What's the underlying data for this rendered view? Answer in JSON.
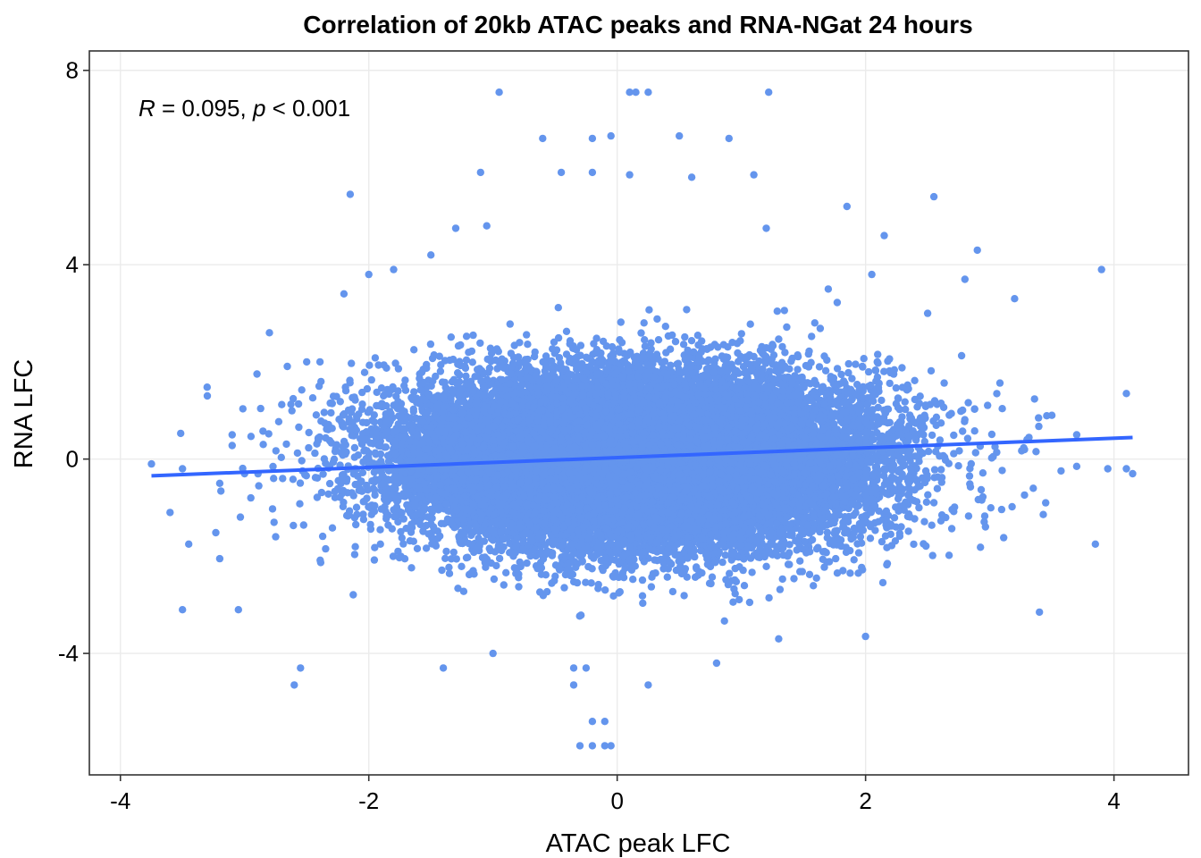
{
  "chart_data": {
    "type": "scatter",
    "title": "Correlation of 20kb ATAC peaks and RNA-NGat 24 hours",
    "xlabel": "ATAC peak LFC",
    "ylabel": "RNA LFC",
    "xlim": [
      -4.25,
      4.6
    ],
    "ylim": [
      -6.5,
      8.4
    ],
    "x_ticks": [
      -4,
      -2,
      0,
      2,
      4
    ],
    "x_tick_labels": [
      "-4",
      "-2",
      "0",
      "2",
      "4"
    ],
    "y_ticks": [
      -4,
      0,
      4,
      8
    ],
    "y_tick_labels": [
      "-4",
      "0",
      "4",
      "8"
    ],
    "grid": true,
    "point_color": "#6495ED",
    "line_color": "#3366FF",
    "annotation": {
      "r_symbol": "R",
      "r_text": " = 0.095, ",
      "p_symbol": "p",
      "p_text": " < 0.001"
    },
    "regression": {
      "slope": 0.1,
      "intercept": 0.03,
      "x_range": [
        -3.75,
        4.15
      ]
    },
    "dense_cloud": {
      "n": 26000,
      "center": [
        0.15,
        0.0
      ],
      "sd_x": 0.9,
      "sd_y": 0.85,
      "seed": 7
    },
    "outlier_points": [
      [
        -0.95,
        7.55
      ],
      [
        0.1,
        7.55
      ],
      [
        0.15,
        7.55
      ],
      [
        0.25,
        7.55
      ],
      [
        1.22,
        7.55
      ],
      [
        -0.6,
        6.6
      ],
      [
        -0.2,
        6.6
      ],
      [
        -0.05,
        6.65
      ],
      [
        0.5,
        6.65
      ],
      [
        0.9,
        6.6
      ],
      [
        -1.1,
        5.9
      ],
      [
        -0.45,
        5.9
      ],
      [
        -0.2,
        5.9
      ],
      [
        0.1,
        5.85
      ],
      [
        0.6,
        5.8
      ],
      [
        1.1,
        5.85
      ],
      [
        -2.15,
        5.45
      ],
      [
        2.55,
        5.4
      ],
      [
        -1.3,
        4.75
      ],
      [
        -1.05,
        4.8
      ],
      [
        1.2,
        4.75
      ],
      [
        1.85,
        5.2
      ],
      [
        2.15,
        4.6
      ],
      [
        3.9,
        3.9
      ],
      [
        2.9,
        4.3
      ],
      [
        2.8,
        3.7
      ],
      [
        -2.0,
        3.8
      ],
      [
        -2.2,
        3.4
      ],
      [
        -2.8,
        2.6
      ],
      [
        3.2,
        3.3
      ],
      [
        -3.3,
        1.3
      ],
      [
        -2.9,
        1.75
      ],
      [
        -3.75,
        -0.1
      ],
      [
        -3.5,
        -0.2
      ],
      [
        -3.2,
        -0.5
      ],
      [
        -3.6,
        -1.1
      ],
      [
        -3.45,
        -1.75
      ],
      [
        -3.5,
        -3.1
      ],
      [
        -3.05,
        -3.1
      ],
      [
        -2.55,
        -4.3
      ],
      [
        -2.6,
        -4.65
      ],
      [
        -3.2,
        -2.05
      ],
      [
        -0.35,
        -4.3
      ],
      [
        -0.25,
        -4.3
      ],
      [
        -0.35,
        -4.65
      ],
      [
        0.25,
        -4.65
      ],
      [
        -0.2,
        -5.4
      ],
      [
        -0.1,
        -5.4
      ],
      [
        -0.3,
        -5.9
      ],
      [
        -0.2,
        -5.9
      ],
      [
        -0.05,
        -5.9
      ],
      [
        -0.1,
        -5.9
      ],
      [
        3.4,
        -3.15
      ],
      [
        3.85,
        -1.75
      ],
      [
        2.0,
        -3.65
      ],
      [
        -1.4,
        -4.3
      ],
      [
        4.1,
        1.35
      ],
      [
        4.15,
        -0.3
      ],
      [
        4.1,
        -0.2
      ],
      [
        3.95,
        -0.2
      ],
      [
        3.7,
        -0.15
      ],
      [
        3.7,
        0.5
      ],
      [
        3.5,
        0.9
      ],
      [
        3.35,
        -0.6
      ],
      [
        3.45,
        -0.9
      ],
      [
        3.3,
        0.4
      ],
      [
        -3.1,
        0.5
      ],
      [
        -3.0,
        -0.3
      ],
      [
        -2.85,
        0.3
      ],
      [
        -2.95,
        -0.8
      ],
      [
        -2.75,
        -1.6
      ],
      [
        -2.5,
        2.0
      ],
      [
        -2.4,
        1.5
      ],
      [
        1.7,
        3.5
      ],
      [
        2.05,
        3.8
      ],
      [
        2.5,
        3.0
      ],
      [
        -1.5,
        4.2
      ],
      [
        -1.8,
        3.9
      ],
      [
        0.8,
        -4.2
      ],
      [
        1.3,
        -3.7
      ],
      [
        -1.0,
        -4.0
      ]
    ]
  }
}
